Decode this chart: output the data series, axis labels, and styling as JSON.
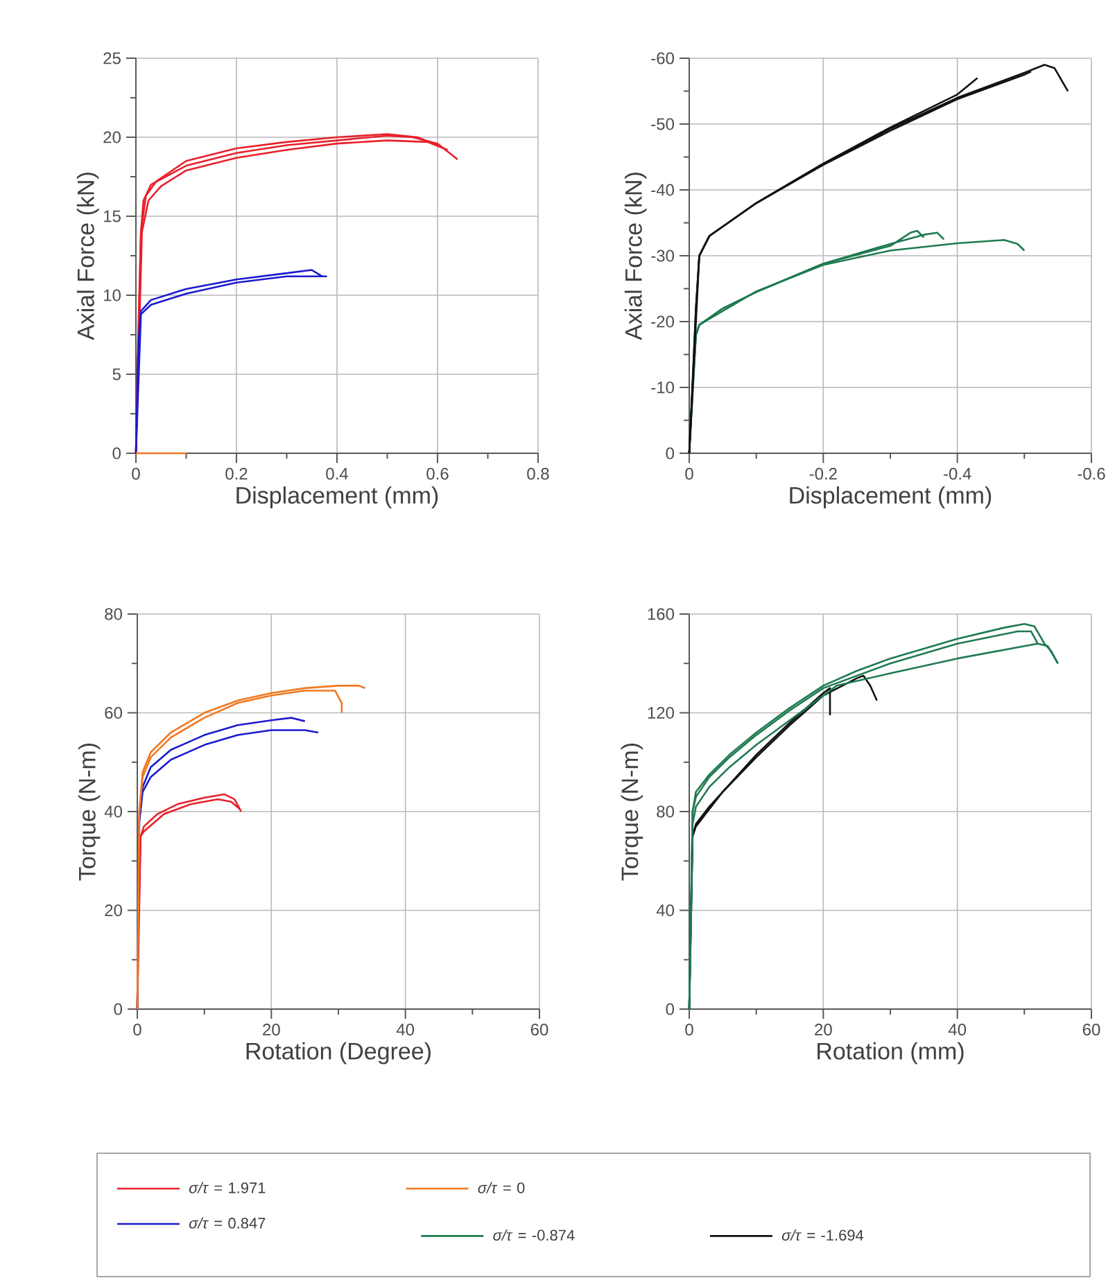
{
  "chart_data": [
    {
      "type": "line",
      "xlabel": "Displacement (mm)",
      "ylabel": "Axial Force (kN)",
      "xlim": [
        0,
        0.8
      ],
      "ylim": [
        0,
        25
      ],
      "xticks": [
        0,
        {
          "value": 0.1,
          "label": null
        },
        0.2,
        {
          "value": 0.3,
          "label": null
        },
        0.4,
        {
          "value": 0.5,
          "label": null
        },
        0.6,
        {
          "value": 0.7,
          "label": null
        },
        0.8
      ],
      "yticks": [
        0,
        {
          "value": 2.5,
          "label": null
        },
        5,
        {
          "value": 7.5,
          "label": null
        },
        10,
        {
          "value": 12.5,
          "label": null
        },
        15,
        {
          "value": 17.5,
          "label": null
        },
        20,
        {
          "value": 22.5,
          "label": null
        },
        25
      ],
      "grid": true,
      "legend": "bottom",
      "series": [
        {
          "name": "*σ/τ* = 1.971",
          "color": "#e8202a",
          "x": [
            0,
            0.005,
            0.01,
            0.015,
            0.03,
            0.1,
            0.2,
            0.3,
            0.4,
            0.5,
            0.55,
            0.6,
            0.64
          ],
          "values": [
            0,
            8,
            14,
            16,
            17,
            18.2,
            19,
            19.5,
            19.8,
            20.1,
            20,
            19.6,
            18.6
          ]
        },
        {
          "color": "#e8202a",
          "x": [
            0,
            0.01,
            0.02,
            0.04,
            0.1,
            0.2,
            0.3,
            0.4,
            0.5,
            0.56,
            0.6
          ],
          "values": [
            0,
            14,
            16.3,
            17.2,
            18.5,
            19.3,
            19.7,
            20,
            20.2,
            20,
            19.5
          ]
        },
        {
          "color": "#e8202a",
          "x": [
            0,
            0.012,
            0.025,
            0.05,
            0.1,
            0.2,
            0.3,
            0.4,
            0.5,
            0.58,
            0.62
          ],
          "values": [
            0,
            14,
            16,
            16.9,
            17.9,
            18.7,
            19.2,
            19.6,
            19.8,
            19.7,
            19.2
          ]
        },
        {
          "name": "*σ/τ* = 0.847",
          "color": "#1a1ad0",
          "x": [
            0,
            0.005,
            0.01,
            0.03,
            0.1,
            0.2,
            0.3,
            0.35,
            0.37
          ],
          "values": [
            0,
            7,
            9,
            9.7,
            10.4,
            11,
            11.4,
            11.6,
            11.2
          ]
        },
        {
          "color": "#1a1ad0",
          "x": [
            0,
            0.01,
            0.03,
            0.1,
            0.2,
            0.3,
            0.38
          ],
          "values": [
            0,
            8.8,
            9.4,
            10.1,
            10.8,
            11.2,
            11.2
          ]
        },
        {
          "name": "*σ/τ* = 0",
          "color": "#f07820",
          "x": [
            0,
            0.1
          ],
          "values": [
            0,
            0
          ]
        }
      ]
    },
    {
      "type": "line",
      "xlabel": "Displacement (mm)",
      "ylabel": "Axial Force (kN)",
      "xlim": [
        0,
        -0.6
      ],
      "ylim": [
        0,
        -60
      ],
      "xticks": [
        0,
        {
          "value": -0.1,
          "label": null
        },
        -0.2,
        {
          "value": -0.3,
          "label": null
        },
        -0.4,
        {
          "value": -0.5,
          "label": null
        },
        -0.6
      ],
      "yticks": [
        0,
        {
          "value": -5,
          "label": null
        },
        -10,
        {
          "value": -15,
          "label": null
        },
        -20,
        {
          "value": -25,
          "label": null
        },
        -30,
        {
          "value": -35,
          "label": null
        },
        -40,
        {
          "value": -45,
          "label": null
        },
        -50,
        {
          "value": -55,
          "label": null
        },
        -60
      ],
      "grid": true,
      "legend": "bottom",
      "series": [
        {
          "name": "*σ/τ* = -0.874",
          "color": "#1e7a50",
          "x": [
            0,
            -0.005,
            -0.01,
            -0.015,
            -0.05,
            -0.1,
            -0.2,
            -0.3,
            -0.33,
            -0.34,
            -0.35
          ],
          "values": [
            0,
            -10,
            -18,
            -19.5,
            -22,
            -24.5,
            -28.8,
            -31.5,
            -33.5,
            -33.8,
            -32.8
          ]
        },
        {
          "color": "#1e7a50",
          "x": [
            0,
            -0.01,
            -0.015,
            -0.05,
            -0.1,
            -0.2,
            -0.3,
            -0.35,
            -0.37,
            -0.38
          ],
          "values": [
            0,
            -18,
            -19.5,
            -22,
            -24.5,
            -28.8,
            -31.8,
            -33.2,
            -33.5,
            -32.5
          ]
        },
        {
          "color": "#1e7a50",
          "x": [
            0,
            -0.01,
            -0.015,
            -0.1,
            -0.2,
            -0.3,
            -0.4,
            -0.47,
            -0.49,
            -0.5
          ],
          "values": [
            0,
            -18,
            -19.5,
            -24.6,
            -28.6,
            -30.8,
            -31.9,
            -32.4,
            -31.8,
            -30.8
          ]
        },
        {
          "name": "*σ/τ* = -1.694",
          "color": "#111111",
          "x": [
            0,
            -0.005,
            -0.01,
            -0.015,
            -0.03,
            -0.1,
            -0.2,
            -0.3,
            -0.4,
            -0.43
          ],
          "values": [
            0,
            -10,
            -22,
            -30,
            -33,
            -38,
            -44,
            -49.5,
            -54.5,
            -57
          ]
        },
        {
          "color": "#111111",
          "x": [
            0,
            -0.01,
            -0.015,
            -0.03,
            -0.1,
            -0.2,
            -0.3,
            -0.4,
            -0.5,
            -0.53,
            -0.545,
            -0.565
          ],
          "values": [
            0,
            -22,
            -30,
            -33,
            -38,
            -44,
            -49.3,
            -54,
            -57.8,
            -59,
            -58.5,
            -55
          ]
        },
        {
          "color": "#111111",
          "x": [
            0,
            -0.015,
            -0.03,
            -0.1,
            -0.2,
            -0.3,
            -0.4,
            -0.5,
            -0.51
          ],
          "values": [
            0,
            -30,
            -33,
            -38,
            -43.8,
            -49,
            -53.8,
            -57.5,
            -58
          ]
        }
      ]
    },
    {
      "type": "line",
      "xlabel": "Rotation (Degree)",
      "ylabel": "Torque (N-m)",
      "xlim": [
        0,
        60
      ],
      "ylim": [
        0,
        80
      ],
      "xticks": [
        0,
        {
          "value": 10,
          "label": null
        },
        20,
        {
          "value": 30,
          "label": null
        },
        40,
        {
          "value": 50,
          "label": null
        },
        60
      ],
      "yticks": [
        0,
        {
          "value": 10,
          "label": null
        },
        20,
        {
          "value": 30,
          "label": null
        },
        40,
        {
          "value": 50,
          "label": null
        },
        60,
        {
          "value": 70,
          "label": null
        },
        80
      ],
      "grid": true,
      "series": [
        {
          "color": "#e8202a",
          "x": [
            0,
            0.2,
            0.5,
            1,
            3,
            6,
            10,
            13,
            14.5,
            15.5
          ],
          "values": [
            0,
            20,
            35,
            37,
            39.5,
            41.5,
            42.8,
            43.5,
            42.5,
            40
          ]
        },
        {
          "color": "#e8202a",
          "x": [
            0,
            0.5,
            1,
            4,
            8,
            12,
            14,
            15.3
          ],
          "values": [
            0,
            35,
            36,
            39.5,
            41.5,
            42.5,
            42,
            40.5
          ]
        },
        {
          "color": "#1a1ad0",
          "x": [
            0,
            0.3,
            0.8,
            2,
            5,
            10,
            15,
            20,
            23,
            25
          ],
          "values": [
            0,
            38,
            45,
            49,
            52.5,
            55.5,
            57.5,
            58.5,
            59,
            58.3
          ]
        },
        {
          "color": "#1a1ad0",
          "x": [
            0,
            0.3,
            0.8,
            2,
            5,
            10,
            15,
            20,
            25,
            27
          ],
          "values": [
            0,
            38,
            44,
            47,
            50.5,
            53.5,
            55.5,
            56.5,
            56.5,
            56
          ]
        },
        {
          "color": "#f07820",
          "x": [
            0,
            0.3,
            0.8,
            2,
            5,
            10,
            15,
            20,
            25,
            30,
            33,
            34
          ],
          "values": [
            0,
            40,
            48,
            52,
            56,
            60,
            62.5,
            64,
            65,
            65.5,
            65.5,
            65
          ]
        },
        {
          "color": "#f07820",
          "x": [
            0,
            0.3,
            0.8,
            2,
            5,
            10,
            15,
            20,
            25,
            29.5,
            30.5,
            30.5
          ],
          "values": [
            0,
            40,
            47,
            51,
            55,
            59,
            62,
            63.5,
            64.5,
            64.5,
            62,
            60
          ]
        }
      ]
    },
    {
      "type": "line",
      "xlabel": "Rotation (mm)",
      "ylabel": "Torque (N-m)",
      "xlim": [
        0,
        60
      ],
      "ylim": [
        0,
        160
      ],
      "xticks": [
        0,
        {
          "value": 10,
          "label": null
        },
        20,
        {
          "value": 30,
          "label": null
        },
        40,
        {
          "value": 50,
          "label": null
        },
        60
      ],
      "yticks": [
        0,
        {
          "value": 20,
          "label": null
        },
        40,
        {
          "value": 60,
          "label": null
        },
        80,
        {
          "value": 100,
          "label": null
        },
        120,
        {
          "value": 140,
          "label": null
        },
        160
      ],
      "grid": true,
      "series": [
        {
          "color": "#111111",
          "x": [
            0,
            0.5,
            1,
            3,
            6,
            10,
            15,
            20,
            21,
            21
          ],
          "values": [
            0,
            70,
            75,
            82,
            91,
            103,
            116,
            128,
            130,
            119
          ]
        },
        {
          "color": "#111111",
          "x": [
            0,
            0.5,
            1,
            5,
            10,
            15,
            20,
            25,
            26,
            27,
            28
          ],
          "values": [
            0,
            70,
            74,
            88,
            102,
            115,
            127,
            134,
            135,
            131,
            125
          ]
        },
        {
          "color": "#1e7a50",
          "x": [
            0,
            0.3,
            0.5,
            1,
            3,
            6,
            10,
            15,
            20,
            25,
            30,
            40,
            47,
            50,
            51.5,
            53,
            54,
            55
          ],
          "values": [
            0,
            40,
            80,
            88,
            95,
            103,
            112,
            122,
            131,
            137,
            142,
            150,
            154.5,
            156,
            155,
            148,
            145,
            140
          ]
        },
        {
          "color": "#1e7a50",
          "x": [
            0,
            0.5,
            1,
            3,
            6,
            10,
            15,
            20,
            30,
            40,
            49,
            51,
            52
          ],
          "values": [
            0,
            80,
            86,
            94,
            102,
            111,
            121,
            130,
            140,
            148,
            153,
            153,
            148
          ]
        },
        {
          "color": "#1e7a50",
          "x": [
            0,
            0.5,
            1,
            3,
            6,
            10,
            15,
            20,
            22,
            30,
            40,
            50,
            52,
            53.5,
            55
          ],
          "values": [
            0,
            75,
            82,
            90,
            98,
            107,
            117,
            127,
            131,
            136,
            142,
            147,
            148,
            147,
            140
          ]
        }
      ]
    }
  ]
}
